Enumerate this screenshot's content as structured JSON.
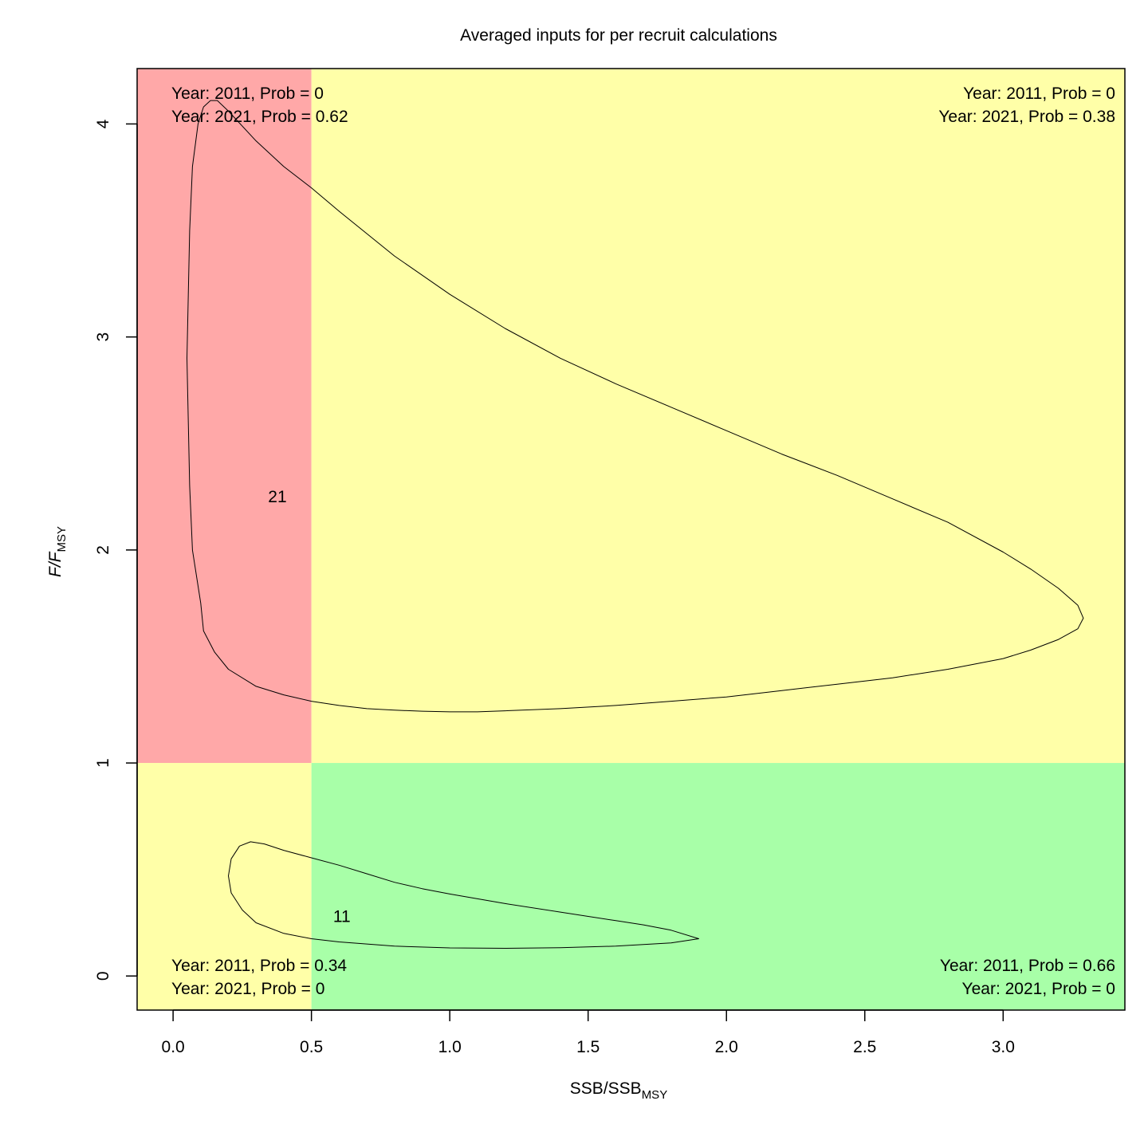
{
  "chart_data": {
    "type": "scatter",
    "title": "Averaged inputs for per recruit calculations",
    "xlabel": {
      "main": "SSB/SSB",
      "sub": "MSY"
    },
    "ylabel": {
      "main": "F/F",
      "sub": "MSY"
    },
    "xlim": [
      -0.13,
      3.44
    ],
    "ylim": [
      -0.16,
      4.26
    ],
    "x_ticks": [
      {
        "value": 0.0,
        "label": "0.0"
      },
      {
        "value": 0.5,
        "label": "0.5"
      },
      {
        "value": 1.0,
        "label": "1.0"
      },
      {
        "value": 1.5,
        "label": "1.5"
      },
      {
        "value": 2.0,
        "label": "2.0"
      },
      {
        "value": 2.5,
        "label": "2.5"
      },
      {
        "value": 3.0,
        "label": "3.0"
      }
    ],
    "y_ticks": [
      {
        "value": 0,
        "label": "0"
      },
      {
        "value": 1,
        "label": "1"
      },
      {
        "value": 2,
        "label": "2"
      },
      {
        "value": 3,
        "label": "3"
      },
      {
        "value": 4,
        "label": "4"
      }
    ],
    "reference_lines": {
      "ssb": 0.5,
      "f": 1.0
    },
    "quadrant_colors": {
      "top_left": "#ffa8a8",
      "top_right": "#ffffa8",
      "bottom_left": "#ffffa8",
      "bottom_right": "#a8ffa8"
    },
    "quadrant_labels": {
      "top_left": [
        "Year: 2011, Prob = 0",
        "Year: 2021, Prob = 0.62"
      ],
      "top_right": [
        "Year: 2011, Prob = 0",
        "Year: 2021, Prob = 0.38"
      ],
      "bottom_left": [
        "Year: 2011, Prob = 0.34",
        "Year: 2021, Prob = 0"
      ],
      "bottom_right": [
        "Year: 2011, Prob = 0.66",
        "Year: 2021, Prob = 0"
      ]
    },
    "contours": [
      {
        "label": "21",
        "label_at": [
          0.377,
          2.25
        ],
        "points": [
          [
            0.135,
            4.11
          ],
          [
            0.16,
            4.11
          ],
          [
            0.2,
            4.06
          ],
          [
            0.3,
            3.92
          ],
          [
            0.4,
            3.8
          ],
          [
            0.5,
            3.7
          ],
          [
            0.6,
            3.59
          ],
          [
            0.8,
            3.38
          ],
          [
            1.0,
            3.2
          ],
          [
            1.2,
            3.04
          ],
          [
            1.4,
            2.9
          ],
          [
            1.6,
            2.78
          ],
          [
            1.8,
            2.67
          ],
          [
            2.0,
            2.56
          ],
          [
            2.2,
            2.45
          ],
          [
            2.4,
            2.35
          ],
          [
            2.6,
            2.24
          ],
          [
            2.8,
            2.13
          ],
          [
            3.0,
            1.99
          ],
          [
            3.1,
            1.91
          ],
          [
            3.2,
            1.82
          ],
          [
            3.27,
            1.74
          ],
          [
            3.29,
            1.68
          ],
          [
            3.27,
            1.63
          ],
          [
            3.2,
            1.58
          ],
          [
            3.1,
            1.53
          ],
          [
            3.0,
            1.49
          ],
          [
            2.8,
            1.44
          ],
          [
            2.6,
            1.4
          ],
          [
            2.4,
            1.37
          ],
          [
            2.2,
            1.34
          ],
          [
            2.0,
            1.31
          ],
          [
            1.8,
            1.29
          ],
          [
            1.6,
            1.27
          ],
          [
            1.4,
            1.255
          ],
          [
            1.2,
            1.245
          ],
          [
            1.1,
            1.24
          ],
          [
            1.0,
            1.24
          ],
          [
            0.9,
            1.243
          ],
          [
            0.8,
            1.248
          ],
          [
            0.7,
            1.255
          ],
          [
            0.6,
            1.27
          ],
          [
            0.5,
            1.29
          ],
          [
            0.4,
            1.32
          ],
          [
            0.3,
            1.36
          ],
          [
            0.2,
            1.44
          ],
          [
            0.15,
            1.52
          ],
          [
            0.11,
            1.62
          ],
          [
            0.1,
            1.75
          ],
          [
            0.07,
            2.0
          ],
          [
            0.06,
            2.3
          ],
          [
            0.055,
            2.6
          ],
          [
            0.05,
            2.9
          ],
          [
            0.055,
            3.2
          ],
          [
            0.06,
            3.5
          ],
          [
            0.07,
            3.8
          ],
          [
            0.09,
            4.0
          ],
          [
            0.11,
            4.08
          ],
          [
            0.135,
            4.11
          ]
        ]
      },
      {
        "label": "11",
        "label_at": [
          0.61,
          0.28
        ],
        "points": [
          [
            0.28,
            0.63
          ],
          [
            0.33,
            0.62
          ],
          [
            0.4,
            0.59
          ],
          [
            0.5,
            0.555
          ],
          [
            0.6,
            0.52
          ],
          [
            0.7,
            0.48
          ],
          [
            0.8,
            0.44
          ],
          [
            0.9,
            0.41
          ],
          [
            1.0,
            0.385
          ],
          [
            1.2,
            0.34
          ],
          [
            1.4,
            0.3
          ],
          [
            1.6,
            0.26
          ],
          [
            1.7,
            0.24
          ],
          [
            1.8,
            0.215
          ],
          [
            1.9,
            0.175
          ],
          [
            1.8,
            0.155
          ],
          [
            1.6,
            0.14
          ],
          [
            1.4,
            0.133
          ],
          [
            1.2,
            0.13
          ],
          [
            1.0,
            0.132
          ],
          [
            0.8,
            0.14
          ],
          [
            0.6,
            0.16
          ],
          [
            0.5,
            0.175
          ],
          [
            0.4,
            0.2
          ],
          [
            0.3,
            0.25
          ],
          [
            0.25,
            0.31
          ],
          [
            0.21,
            0.39
          ],
          [
            0.2,
            0.47
          ],
          [
            0.21,
            0.55
          ],
          [
            0.24,
            0.61
          ],
          [
            0.28,
            0.63
          ]
        ]
      }
    ],
    "legend": "none",
    "grid": false
  }
}
